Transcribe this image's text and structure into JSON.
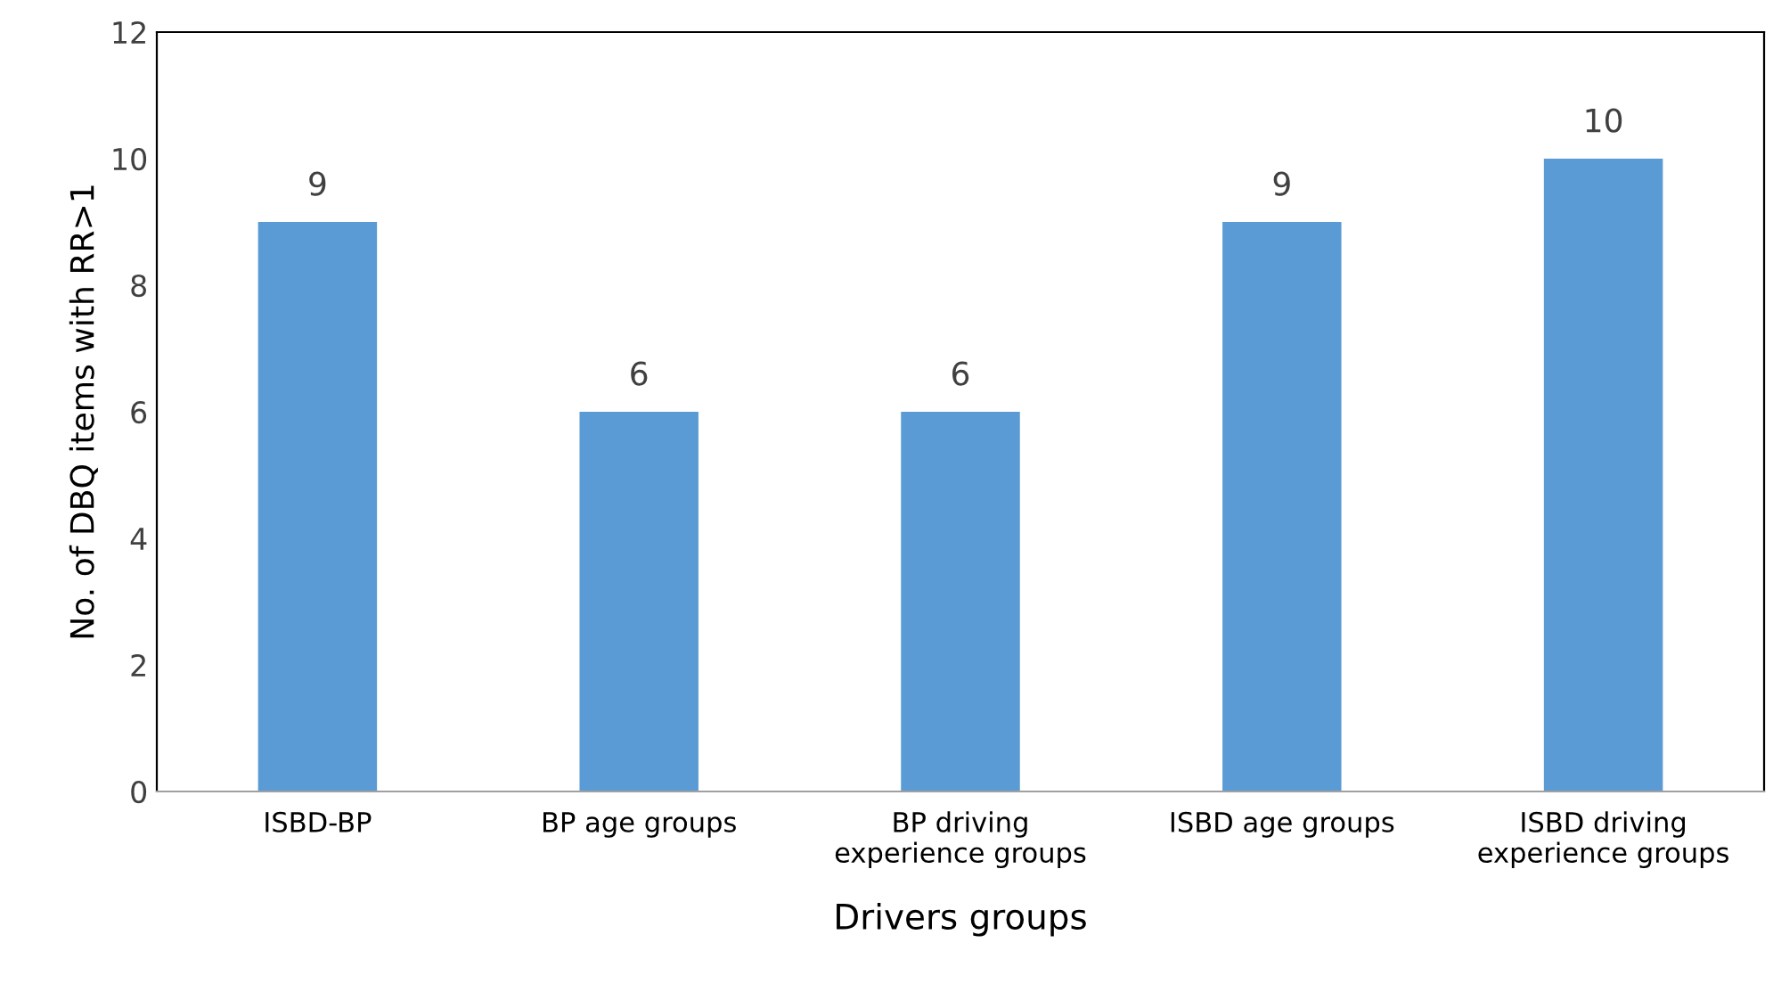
{
  "chart_data": {
    "type": "bar",
    "xlabel": "Drivers groups",
    "ylabel": "No. of DBQ items with RR>1",
    "categories": [
      "ISBD-BP",
      "BP age groups",
      "BP driving\nexperience groups",
      "ISBD age groups",
      "ISBD driving\nexperience groups"
    ],
    "values": [
      9,
      6,
      6,
      9,
      10
    ],
    "color": "#5b9bd5",
    "ylim": [
      0,
      12
    ],
    "yticks": [
      0,
      2,
      4,
      6,
      8,
      10,
      12
    ],
    "grid": false,
    "data_labels": true,
    "legend": false
  }
}
